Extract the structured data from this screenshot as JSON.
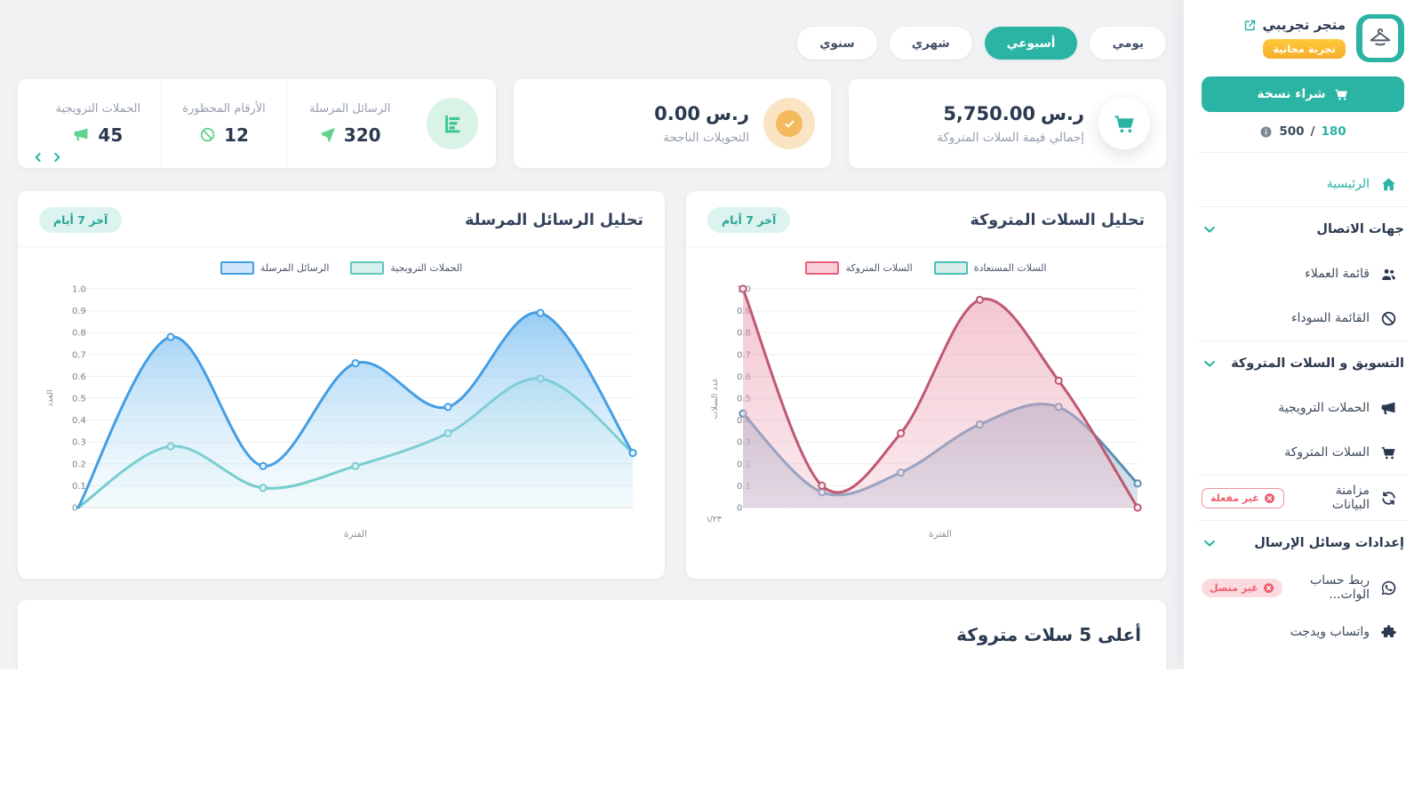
{
  "theme": {
    "primary": "#2bb3a3",
    "background": "#f1f2f4",
    "text_dark": "#2b3950",
    "text_muted": "#959dab",
    "danger": "#ee5d6c",
    "trial_badge_yellow": "#f9b92f",
    "orange_accent": "#f3ba5e",
    "green_accent": "#63d290"
  },
  "sidebar": {
    "store_name": "متجر تجريبي",
    "trial_badge": "تجربة مجانية",
    "buy_button_label": "شراء نسخة",
    "usage": {
      "left_value": "500",
      "separator": "/",
      "right_value": "180"
    },
    "menu": [
      {
        "type": "link",
        "label": "الرئيسية",
        "icon": "home",
        "active": true
      },
      {
        "type": "divider"
      },
      {
        "type": "section",
        "label": "جهات الاتصال",
        "icon": "chevron-down"
      },
      {
        "type": "link",
        "label": "قائمة العملاء",
        "icon": "users"
      },
      {
        "type": "link",
        "label": "القائمة السوداء",
        "icon": "ban"
      },
      {
        "type": "divider"
      },
      {
        "type": "section",
        "label": "التسويق و السلات المتروكة",
        "icon": "chevron-down"
      },
      {
        "type": "link",
        "label": "الحملات الترويجية",
        "icon": "megaphone"
      },
      {
        "type": "link",
        "label": "السلات المتروكة",
        "icon": "cart"
      },
      {
        "type": "divider"
      },
      {
        "type": "link",
        "label": "مزامنة البيانات",
        "icon": "sync",
        "badge": {
          "text": "غير مفعلة",
          "style": "outline"
        }
      },
      {
        "type": "divider"
      },
      {
        "type": "section",
        "label": "إعدادات وسائل الإرسال",
        "icon": "chevron-down"
      },
      {
        "type": "link",
        "label": "ربط حساب الوات...",
        "icon": "whatsapp",
        "badge": {
          "text": "غير متصل",
          "style": "filled"
        }
      },
      {
        "type": "link",
        "label": "واتساب ويدجت",
        "icon": "puzzle"
      }
    ]
  },
  "period_filters": [
    {
      "label": "يومي",
      "active": false
    },
    {
      "label": "أسبوعي",
      "active": true
    },
    {
      "label": "شهري",
      "active": false
    },
    {
      "label": "سنوي",
      "active": false
    }
  ],
  "stat_cards": {
    "carts_total": {
      "amount": "5,750.00",
      "currency": "ر.س",
      "label": "إجمالي قيمة السلات المتروكة",
      "icon": "cart"
    },
    "conversions": {
      "amount": "0.00",
      "currency": "ر.س",
      "label": "التحويلات الناجحة",
      "icon": "check"
    },
    "messages_group": {
      "icon": "bar-chart",
      "items": [
        {
          "label": "الرسائل المرسلة",
          "value": "320",
          "icon": "paper-plane"
        },
        {
          "label": "الأرقام المحظورة",
          "value": "12",
          "icon": "ban"
        },
        {
          "label": "الحملات الترويجية",
          "value": "45",
          "icon": "megaphone"
        }
      ]
    }
  },
  "chart_data": [
    {
      "type": "area",
      "title": "تحليل السلات المتروكة",
      "badge": "آخر 7 أيام",
      "xlabel": "الفترة",
      "ylabel": "عدد السلات",
      "ylim": [
        0,
        1.0
      ],
      "ytick_step": 0.1,
      "grid": true,
      "legend_position": "top",
      "x_first_tick": "١٤٤٧/٨/٢٣ هـ",
      "series": [
        {
          "name": "السلات المستعادة",
          "values": [
            0.43,
            0.07,
            0.16,
            0.38,
            0.46,
            0.11
          ],
          "line": "#5a8fb8",
          "fill_top": "rgba(140,170,200,0.60)",
          "fill_bottom": "rgba(170,195,218,0.45)",
          "swatch_fill": "#d7eeeb",
          "swatch_border": "#49c0b6"
        },
        {
          "name": "السلات المتروكة",
          "values": [
            1.0,
            0.1,
            0.34,
            0.95,
            0.58,
            0.0
          ],
          "line": "#bf5871",
          "fill_top": "rgba(235,150,170,0.55)",
          "fill_bottom": "rgba(242,198,210,0.40)",
          "swatch_fill": "#f8cfd9",
          "swatch_border": "#ec5f7b"
        }
      ]
    },
    {
      "type": "area",
      "title": "تحليل الرسائل المرسلة",
      "badge": "آخر 7 أيام",
      "xlabel": "الفترة",
      "ylabel": "العدد",
      "ylim": [
        0,
        1.0
      ],
      "ytick_step": 0.1,
      "grid": true,
      "legend_position": "top",
      "x_first_tick": "",
      "series": [
        {
          "name": "الحملات الترويجية",
          "values": [
            0,
            0.28,
            0.09,
            0.19,
            0.34,
            0.59,
            0.25
          ],
          "line": "#5fc7bf",
          "fill_top": "rgba(150,220,210,0.35)",
          "fill_bottom": "rgba(215,242,238,0.10)",
          "swatch_fill": "#d7f1ee",
          "swatch_border": "#5fc7bf"
        },
        {
          "name": "الرسائل المرسلة",
          "values": [
            0,
            0.78,
            0.19,
            0.66,
            0.46,
            0.89,
            0.25
          ],
          "line": "#449ee4",
          "fill_top": "rgba(125,192,240,0.80)",
          "fill_bottom": "rgba(205,233,250,0.15)",
          "swatch_fill": "#cfe5f9",
          "swatch_border": "#449ee4"
        }
      ]
    }
  ],
  "bottom_section": {
    "title": "أعلى 5 سلات متروكة"
  }
}
